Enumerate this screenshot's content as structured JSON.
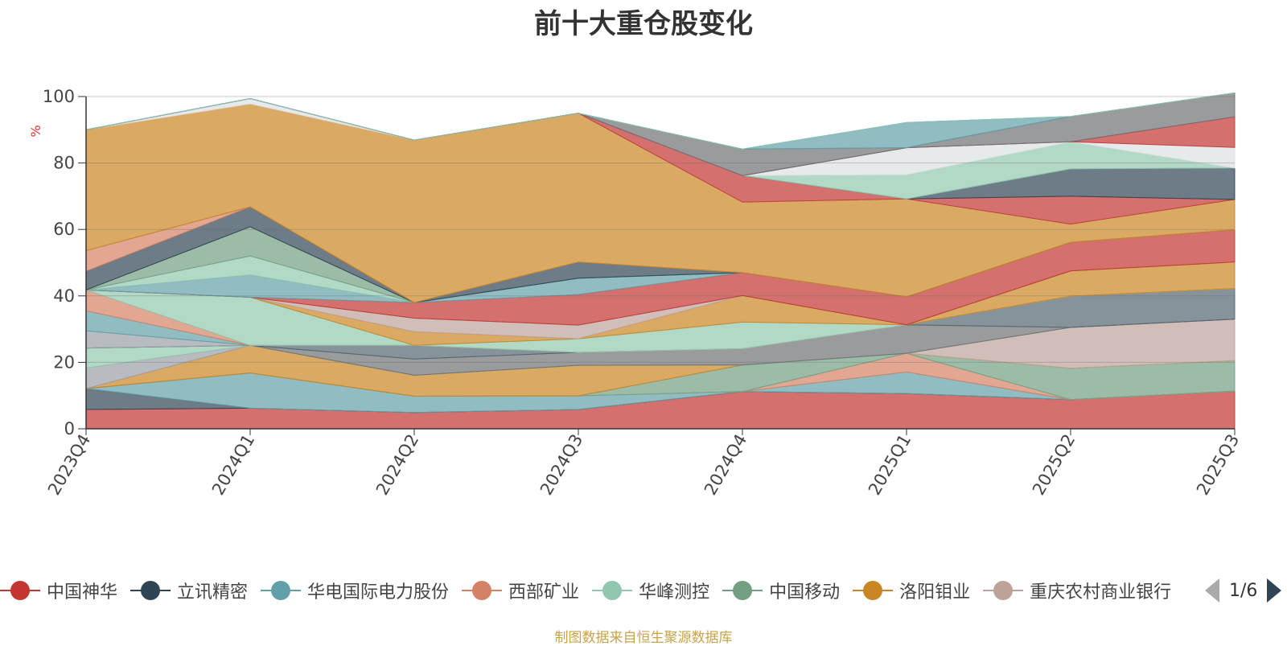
{
  "title": "前十大重仓股变化",
  "source_note": "制图数据来自恒生聚源数据库",
  "legend_page": "1/6",
  "chart_data": {
    "type": "area",
    "stacked": true,
    "title": "前十大重仓股变化",
    "ylabel": "%",
    "ylim": [
      0,
      100
    ],
    "yticks": [
      0,
      20,
      40,
      60,
      80,
      100
    ],
    "grid": true,
    "categories": [
      "2023Q4",
      "2024Q1",
      "2024Q2",
      "2024Q3",
      "2024Q4",
      "2025Q1",
      "2025Q2",
      "2025Q3"
    ],
    "series": [
      {
        "name": "中国神华",
        "color": "#c23531",
        "values": [
          5.8,
          6.2,
          4.9,
          5.8,
          11.2,
          10.6,
          8.8,
          11.3
        ]
      },
      {
        "name": "立讯精密",
        "color": "#2f4554",
        "values": [
          6.3,
          0,
          0,
          0,
          0,
          0,
          0,
          0
        ]
      },
      {
        "name": "华电国际电力股份",
        "color": "#61a0a8",
        "values": [
          0,
          10.6,
          4.9,
          4.1,
          0,
          6.5,
          0,
          0
        ]
      },
      {
        "name": "西部矿业",
        "color": "#d48265",
        "values": [
          0,
          0,
          0,
          0,
          0,
          5.6,
          0,
          0
        ]
      },
      {
        "name": "华峰测控",
        "color": "#91c7ae",
        "values": [
          0,
          0,
          0,
          0,
          0,
          0,
          0,
          0
        ]
      },
      {
        "name": "中国移动",
        "color": "#749f83",
        "values": [
          0,
          0,
          0,
          0,
          8.0,
          0,
          9.4,
          9.2
        ]
      },
      {
        "name": "洛阳钼业",
        "color": "#ca8622",
        "values": [
          0,
          8.3,
          6.3,
          9.2,
          0,
          0,
          0,
          0
        ]
      },
      {
        "name": "重庆农村商业银行",
        "color": "#bda29a",
        "values": [
          0,
          0,
          0,
          0,
          0,
          0,
          12.3,
          12.5
        ]
      },
      {
        "name": "—",
        "color": "#9aa0a6",
        "values": [
          6.2,
          0,
          0,
          0,
          0,
          0,
          0,
          0
        ]
      },
      {
        "name": "—",
        "color": "#91c7ae",
        "values": [
          6.0,
          0,
          0,
          0,
          0,
          0,
          0,
          0
        ]
      },
      {
        "name": "—",
        "color": "#6e7074",
        "values": [
          0,
          0,
          4.9,
          3.9,
          4.9,
          8.6,
          0,
          0
        ]
      },
      {
        "name": "—",
        "color": "#546570",
        "values": [
          0,
          0,
          4.1,
          0,
          0,
          0,
          9.4,
          9.2
        ]
      },
      {
        "name": "—",
        "color": "#9aa0a6",
        "values": [
          5.2,
          0,
          0,
          0,
          0,
          0,
          0,
          0
        ]
      },
      {
        "name": "—",
        "color": "#61a0a8",
        "values": [
          6.0,
          0,
          0,
          0,
          0,
          0,
          0,
          0
        ]
      },
      {
        "name": "—",
        "color": "#d48265",
        "values": [
          6.3,
          0,
          0,
          0,
          0,
          0,
          0,
          0
        ]
      },
      {
        "name": "—",
        "color": "#91c7ae",
        "values": [
          0,
          14.5,
          0,
          4.1,
          8.0,
          0,
          0,
          0
        ]
      },
      {
        "name": "—",
        "color": "#ca8622",
        "values": [
          0,
          0,
          4.1,
          0,
          8.0,
          0,
          7.6,
          8.0
        ]
      },
      {
        "name": "—",
        "color": "#bda29a",
        "values": [
          0,
          0,
          4.1,
          4.1,
          0,
          0,
          0,
          0
        ]
      },
      {
        "name": "—",
        "color": "#c23531",
        "values": [
          0,
          0,
          4.7,
          9.2,
          6.9,
          8.4,
          8.6,
          9.7
        ]
      },
      {
        "name": "—",
        "color": "#61a0a8",
        "values": [
          0,
          6.7,
          0,
          4.9,
          0,
          0,
          0,
          0
        ]
      },
      {
        "name": "—",
        "color": "#91c7ae",
        "values": [
          0,
          5.7,
          0,
          0,
          0,
          0,
          0,
          0
        ]
      },
      {
        "name": "—",
        "color": "#749f83",
        "values": [
          0,
          8.8,
          0,
          0,
          0,
          0,
          0,
          0
        ]
      },
      {
        "name": "—",
        "color": "#2f4554",
        "values": [
          5.6,
          6.0,
          0,
          4.9,
          0,
          0,
          0,
          0
        ]
      },
      {
        "name": "—",
        "color": "#d48265",
        "values": [
          6.2,
          0,
          0,
          0,
          0,
          0,
          0,
          0
        ]
      },
      {
        "name": "—",
        "color": "#ca8622",
        "values": [
          36.4,
          31.0,
          48.9,
          44.8,
          21.2,
          29.5,
          5.5,
          9.1
        ]
      },
      {
        "name": "—",
        "color": "#dde1e6",
        "values": [
          0,
          1.6,
          0,
          0,
          0,
          0,
          0,
          0
        ]
      },
      {
        "name": "—",
        "color": "#c23531",
        "values": [
          0,
          0,
          0,
          0,
          8.0,
          0,
          8.4,
          0
        ]
      },
      {
        "name": "—",
        "color": "#2f4554",
        "values": [
          0,
          0,
          0,
          0,
          0,
          0,
          8.2,
          9.5
        ]
      },
      {
        "name": "—",
        "color": "#91c7ae",
        "values": [
          0,
          0,
          0,
          0,
          0,
          7.3,
          8.2,
          0
        ]
      },
      {
        "name": "—",
        "color": "#dde1e6",
        "values": [
          0,
          0,
          0,
          0,
          0,
          8.1,
          0,
          6.2
        ]
      },
      {
        "name": "—",
        "color": "#c23531",
        "values": [
          0,
          0,
          0,
          0,
          0,
          0,
          0,
          9.2
        ]
      },
      {
        "name": "—",
        "color": "#6e7074",
        "values": [
          0,
          0,
          0,
          0,
          8.0,
          0,
          7.6,
          7.2
        ]
      },
      {
        "name": "—",
        "color": "#61a0a8",
        "values": [
          0,
          0,
          0,
          0,
          0,
          7.6,
          0,
          0
        ]
      },
      {
        "name": "—",
        "color": "#91c7ae",
        "values": [
          0,
          0,
          0,
          0,
          0,
          0,
          0,
          0
        ]
      }
    ]
  },
  "legend_items": [
    {
      "name": "中国神华",
      "color": "#c23531"
    },
    {
      "name": "立讯精密",
      "color": "#2f4554"
    },
    {
      "name": "华电国际电力股份",
      "color": "#61a0a8"
    },
    {
      "name": "西部矿业",
      "color": "#d48265"
    },
    {
      "name": "华峰测控",
      "color": "#91c7ae"
    },
    {
      "name": "中国移动",
      "color": "#749f83"
    },
    {
      "name": "洛阳钼业",
      "color": "#ca8622"
    },
    {
      "name": "重庆农村商业银行",
      "color": "#bda29a"
    }
  ]
}
